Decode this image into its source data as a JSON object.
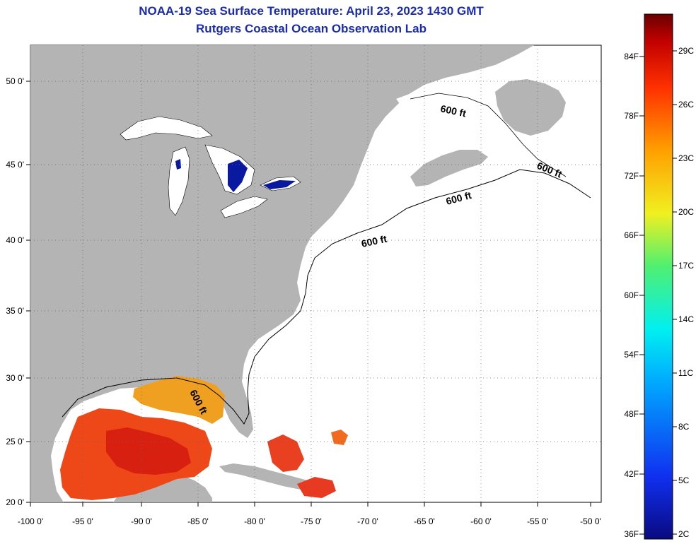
{
  "title": {
    "line1": "NOAA-19 Sea Surface Temperature:  April 23, 2023 1430 GMT",
    "line2": "Rutgers Coastal Ocean Observation Lab"
  },
  "map": {
    "lon_ticks": [
      "-100 0'",
      "-95 0'",
      "-90 0'",
      "-85 0'",
      "-80 0'",
      "-75 0'",
      "-70 0'",
      "-65 0'",
      "-60 0'",
      "-55 0'",
      "-50 0'"
    ],
    "lat_ticks": [
      "50 0'",
      "45 0'",
      "40 0'",
      "35 0'",
      "30 0'",
      "25 0'",
      "20 0'"
    ],
    "isobath_labels": [
      "600 ft",
      "600 ft",
      "600 ft",
      "600 ft",
      "600 ft"
    ],
    "land_color": "#b4b4b4",
    "ocean_color": "#ffffff"
  },
  "colorbar": {
    "fahrenheit": [
      "84F",
      "78F",
      "72F",
      "66F",
      "60F",
      "54F",
      "48F",
      "42F",
      "36F"
    ],
    "celsius": [
      "29C",
      "26C",
      "23C",
      "20C",
      "17C",
      "14C",
      "11C",
      "8C",
      "5C",
      "2C"
    ],
    "gradient": [
      "#0a0a80",
      "#1030f0",
      "#00aaff",
      "#00f0f0",
      "#50f070",
      "#f0f020",
      "#ffa000",
      "#ff3000",
      "#c00000",
      "#6a0000"
    ]
  }
}
